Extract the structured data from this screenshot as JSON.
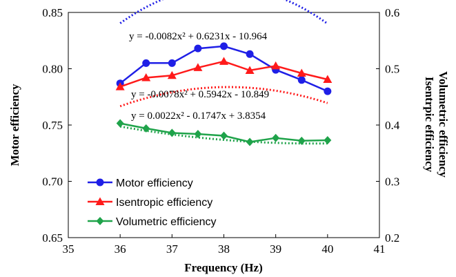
{
  "chart_data": {
    "type": "line",
    "xlabel": "Frequency  (Hz)",
    "ylabel": "Motor efficiency",
    "y2label_lines": [
      "Isentrpic efficiency",
      "Volumetric efficiency"
    ],
    "xlim": [
      35,
      41
    ],
    "ylim": [
      0.65,
      0.85
    ],
    "y2lim": [
      0.2,
      0.6
    ],
    "x_ticks": [
      "35",
      "36",
      "37",
      "38",
      "39",
      "40",
      "41"
    ],
    "y_ticks": [
      "0.65",
      "0.70",
      "0.75",
      "0.80",
      "0.85"
    ],
    "y2_ticks": [
      "0.2",
      "0.3",
      "0.4",
      "0.5",
      "0.6"
    ],
    "grid": false,
    "legend_position": "bottom-left",
    "series": [
      {
        "name": "Motor efficiency",
        "axis": "left",
        "color": "#1f1fe6",
        "marker": "circle",
        "x": [
          36,
          36.5,
          37,
          37.5,
          38,
          38.5,
          39,
          39.5,
          40
        ],
        "values": [
          0.787,
          0.805,
          0.805,
          0.818,
          0.82,
          0.813,
          0.799,
          0.79,
          0.78
        ],
        "trendline": {
          "a": -0.0082,
          "b": 0.6231,
          "c": -10.964
        },
        "equation": "y = -0.0082x² + 0.6231x - 10.964"
      },
      {
        "name": "Isentropic efficiency",
        "axis": "right",
        "color": "#ff1a1a",
        "marker": "triangle",
        "x": [
          36,
          36.5,
          37,
          37.5,
          38,
          38.5,
          39,
          39.5,
          40
        ],
        "values": [
          0.468,
          0.484,
          0.488,
          0.502,
          0.513,
          0.497,
          0.505,
          0.492,
          0.481
        ],
        "trendline": {
          "a": -0.0078,
          "b": 0.5942,
          "c": -10.849
        },
        "equation": "y = -0.0078x² + 0.5942x - 10.849"
      },
      {
        "name": "Volumetric efficiency",
        "axis": "right",
        "color": "#1fa34a",
        "marker": "diamond",
        "x": [
          36,
          36.5,
          37,
          37.5,
          38,
          38.5,
          39,
          39.5,
          40
        ],
        "values": [
          0.403,
          0.394,
          0.386,
          0.384,
          0.381,
          0.37,
          0.377,
          0.372,
          0.373
        ],
        "trendline": {
          "a": 0.0022,
          "b": -0.1747,
          "c": 3.8354
        },
        "equation": "y = 0.0022x² - 0.1747x + 3.8354"
      }
    ]
  }
}
